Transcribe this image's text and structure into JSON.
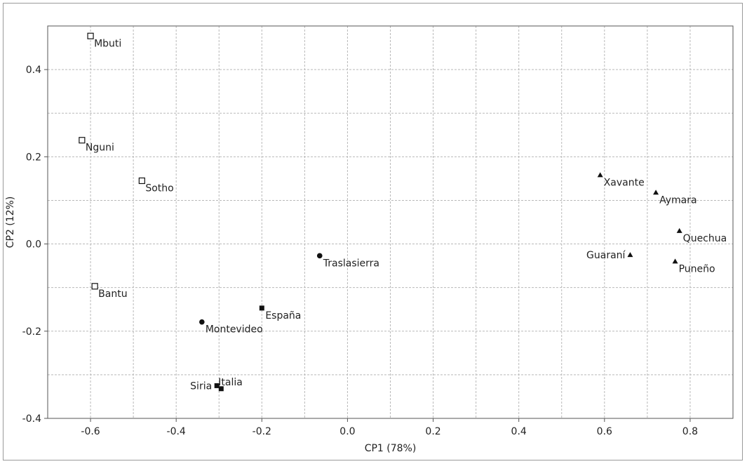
{
  "chart_data": {
    "type": "scatter",
    "title": "",
    "xlabel": "CP1 (78%)",
    "ylabel": "CP2 (12%)",
    "xlim": [
      -0.7,
      0.9
    ],
    "ylim": [
      -0.4,
      0.5
    ],
    "xticks": [
      -0.6,
      -0.4,
      -0.2,
      0.0,
      0.2,
      0.4,
      0.6,
      0.8
    ],
    "xtick_labels": [
      "-0.6",
      "-0.4",
      "-0.2",
      "0.0",
      "0.2",
      "0.4",
      "0.6",
      "0.8"
    ],
    "yticks": [
      -0.4,
      -0.2,
      0.0,
      0.2,
      0.4
    ],
    "ytick_labels": [
      "-0.4",
      "-0.2",
      "0.0",
      "0.2",
      "0.4"
    ],
    "x_gridlines": [
      -0.7,
      -0.6,
      -0.5,
      -0.4,
      -0.3,
      -0.2,
      -0.1,
      0.0,
      0.1,
      0.2,
      0.3,
      0.4,
      0.5,
      0.6,
      0.7,
      0.8,
      0.9
    ],
    "y_gridlines": [
      -0.4,
      -0.3,
      -0.2,
      -0.1,
      0.0,
      0.1,
      0.2,
      0.3,
      0.4,
      0.5
    ],
    "grid": true,
    "legend": "none",
    "marker_styles": [
      "open-square",
      "filled-circle",
      "filled-square",
      "filled-triangle"
    ],
    "colors": {
      "marker": "#111111",
      "grid": "#b9b9b9",
      "axis": "#555555"
    },
    "points": [
      {
        "label": "Mbuti",
        "x": -0.6,
        "y": 0.477,
        "marker": "open-square",
        "label_side": "right"
      },
      {
        "label": "Nguni",
        "x": -0.62,
        "y": 0.238,
        "marker": "open-square",
        "label_side": "right"
      },
      {
        "label": "Sotho",
        "x": -0.48,
        "y": 0.145,
        "marker": "open-square",
        "label_side": "right"
      },
      {
        "label": "Bantu",
        "x": -0.59,
        "y": -0.097,
        "marker": "open-square",
        "label_side": "right"
      },
      {
        "label": "Montevideo",
        "x": -0.34,
        "y": -0.179,
        "marker": "filled-circle",
        "label_side": "right"
      },
      {
        "label": "Traslasierra",
        "x": -0.065,
        "y": -0.027,
        "marker": "filled-circle",
        "label_side": "right"
      },
      {
        "label": "España",
        "x": -0.2,
        "y": -0.147,
        "marker": "filled-square",
        "label_side": "right"
      },
      {
        "label": "Siria",
        "x": -0.305,
        "y": -0.325,
        "marker": "filled-square",
        "label_side": "left"
      },
      {
        "label": "Italia",
        "x": -0.295,
        "y": -0.332,
        "marker": "filled-square",
        "label_side": "right-up"
      },
      {
        "label": "Xavante",
        "x": 0.59,
        "y": 0.158,
        "marker": "filled-triangle",
        "label_side": "right"
      },
      {
        "label": "Aymara",
        "x": 0.72,
        "y": 0.118,
        "marker": "filled-triangle",
        "label_side": "right"
      },
      {
        "label": "Quechua",
        "x": 0.775,
        "y": 0.03,
        "marker": "filled-triangle",
        "label_side": "right"
      },
      {
        "label": "Guaraní",
        "x": 0.66,
        "y": -0.025,
        "marker": "filled-triangle",
        "label_side": "left"
      },
      {
        "label": "Puneño",
        "x": 0.765,
        "y": -0.04,
        "marker": "filled-triangle",
        "label_side": "right"
      }
    ]
  }
}
